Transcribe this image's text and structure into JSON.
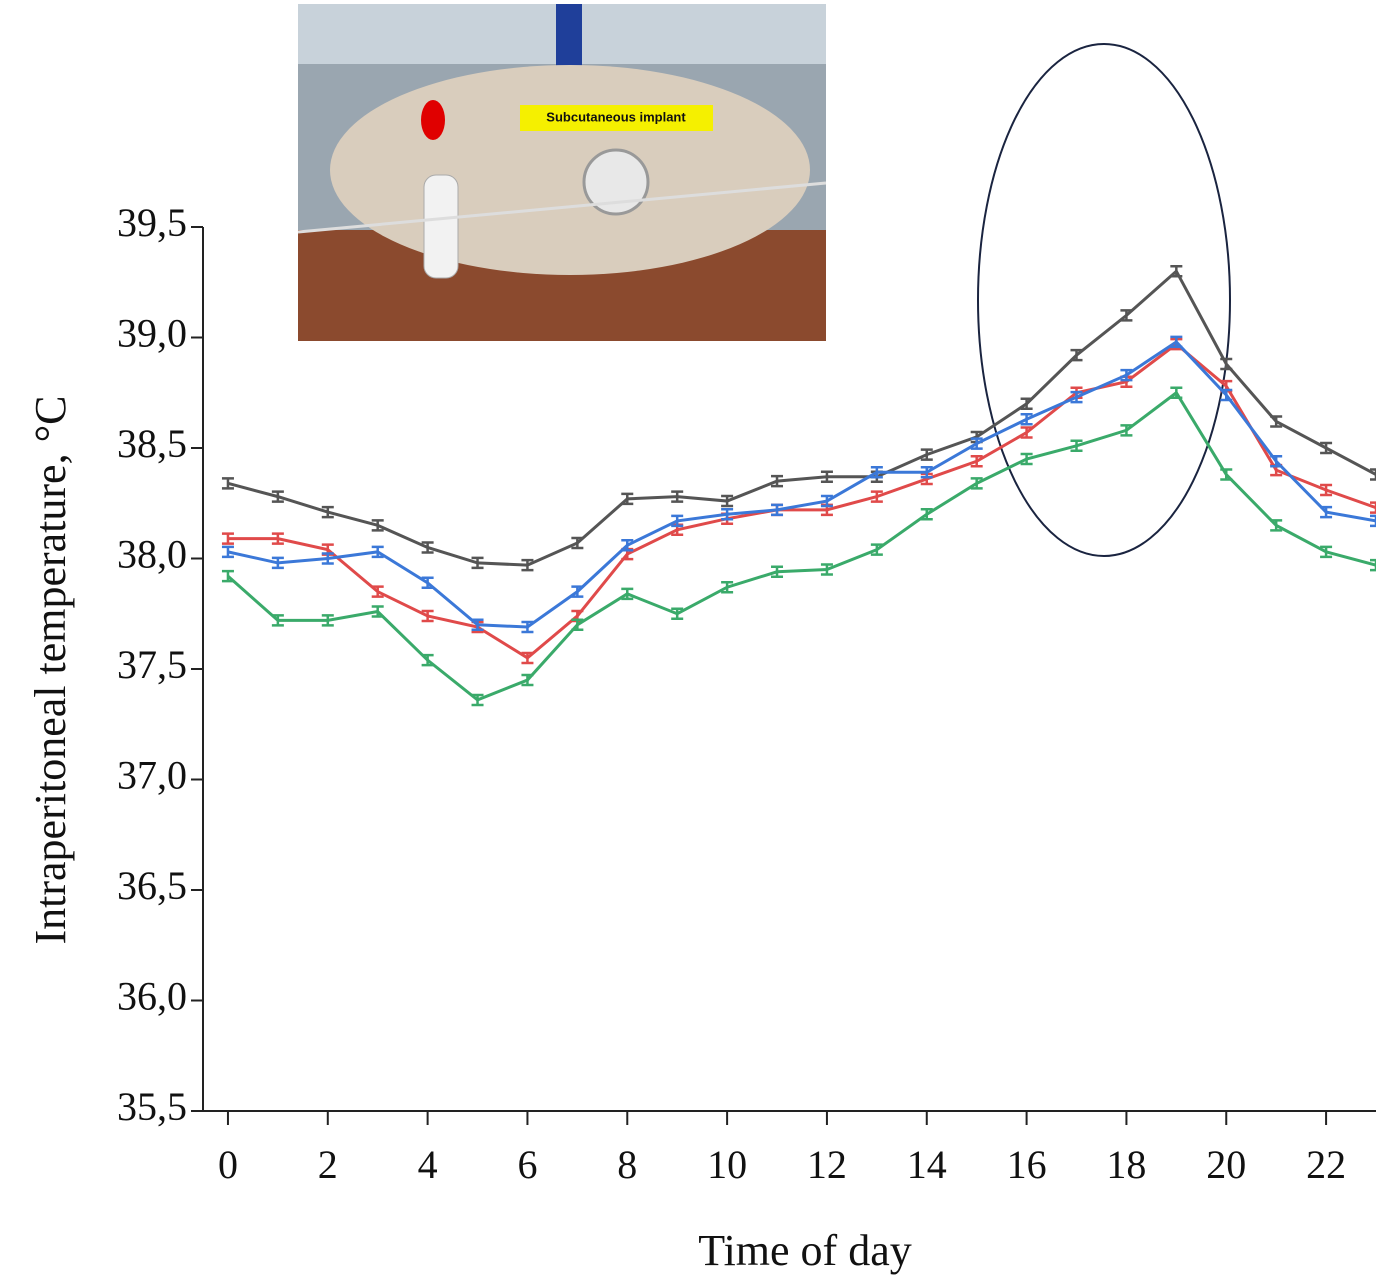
{
  "chart_data": {
    "type": "line",
    "xlabel": "Time of day",
    "ylabel": "Intraperitoneal temperature, °C",
    "annotation": "Subcutaneous implant",
    "x": [
      0,
      1,
      2,
      3,
      4,
      5,
      6,
      7,
      8,
      9,
      10,
      11,
      12,
      13,
      14,
      15,
      16,
      17,
      18,
      19,
      20,
      21,
      22,
      23
    ],
    "xlim": [
      -0.5,
      23
    ],
    "xticks": [
      0,
      2,
      4,
      6,
      8,
      10,
      12,
      14,
      16,
      18,
      20,
      22
    ],
    "ylim": [
      35.5,
      39.5
    ],
    "yticks": [
      {
        "value": 35.5,
        "label": "35,5"
      },
      {
        "value": 36.0,
        "label": "36,0"
      },
      {
        "value": 36.5,
        "label": "36,5"
      },
      {
        "value": 37.0,
        "label": "37,0"
      },
      {
        "value": 37.5,
        "label": "37,5"
      },
      {
        "value": 38.0,
        "label": "38,0"
      },
      {
        "value": 38.5,
        "label": "38,5"
      },
      {
        "value": 39.0,
        "label": "39,0"
      },
      {
        "value": 39.5,
        "label": "39,5"
      }
    ],
    "series": [
      {
        "color": "#555555",
        "values": [
          38.34,
          38.28,
          38.21,
          38.15,
          38.05,
          37.98,
          37.97,
          38.07,
          38.27,
          38.28,
          38.26,
          38.35,
          38.37,
          38.37,
          38.47,
          38.55,
          38.7,
          38.92,
          39.1,
          39.3,
          38.88,
          38.62,
          38.5,
          38.38
        ]
      },
      {
        "color": "#e04a4a",
        "values": [
          38.09,
          38.09,
          38.04,
          37.85,
          37.74,
          37.69,
          37.55,
          37.74,
          38.02,
          38.13,
          38.18,
          38.22,
          38.22,
          38.28,
          38.36,
          38.44,
          38.57,
          38.75,
          38.8,
          38.97,
          38.78,
          38.4,
          38.31,
          38.23
        ]
      },
      {
        "color": "#3b78d8",
        "values": [
          38.03,
          37.98,
          38.0,
          38.03,
          37.89,
          37.7,
          37.69,
          37.85,
          38.06,
          38.17,
          38.2,
          38.22,
          38.26,
          38.39,
          38.39,
          38.52,
          38.63,
          38.73,
          38.83,
          38.98,
          38.74,
          38.44,
          38.21,
          38.17
        ]
      },
      {
        "color": "#3aaa6a",
        "values": [
          37.92,
          37.72,
          37.72,
          37.76,
          37.54,
          37.36,
          37.45,
          37.7,
          37.84,
          37.75,
          37.87,
          37.94,
          37.95,
          38.04,
          38.2,
          38.34,
          38.45,
          38.51,
          38.58,
          38.75,
          38.38,
          38.15,
          38.03,
          37.97
        ]
      }
    ]
  }
}
